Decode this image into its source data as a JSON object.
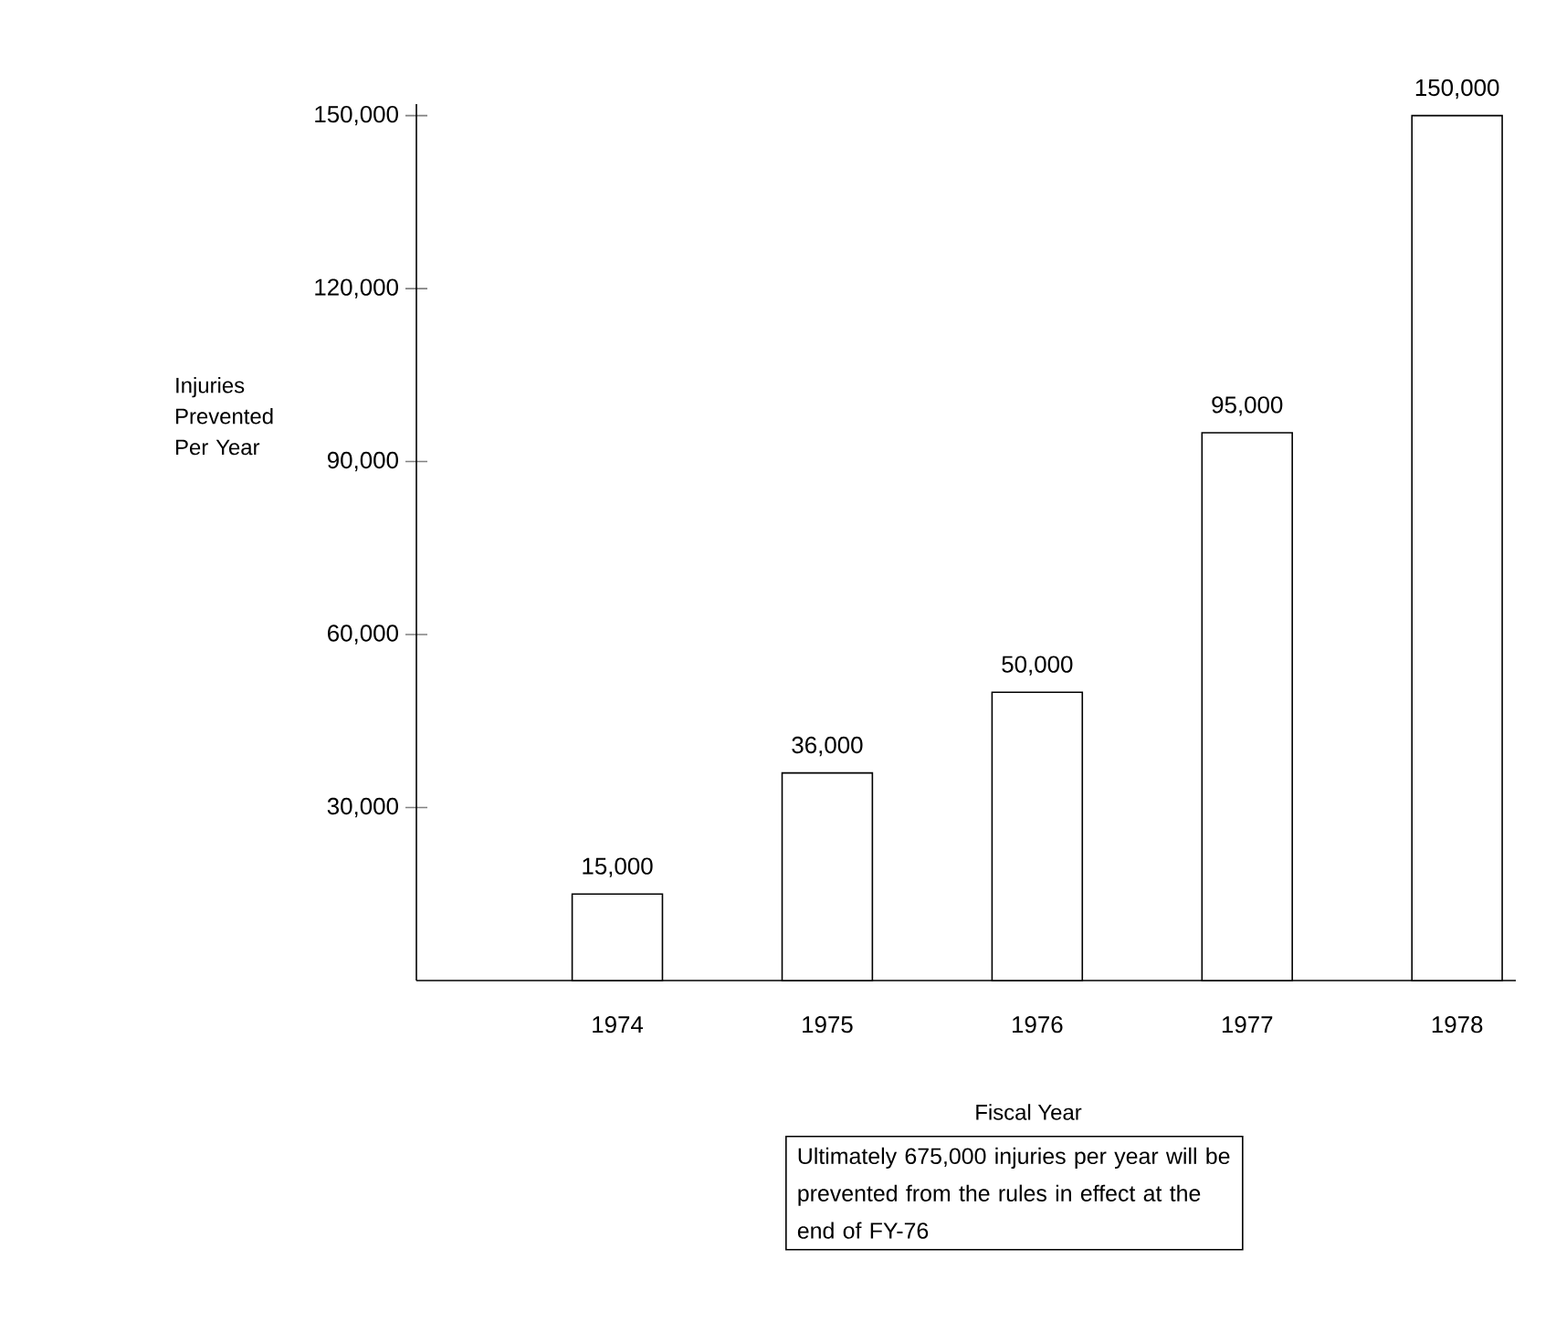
{
  "chart_data": {
    "type": "bar",
    "xlabel": "Fiscal Year",
    "ylabel": "Injuries Prevented Per Year",
    "categories": [
      "1974",
      "1975",
      "1976",
      "1977",
      "1978"
    ],
    "values": [
      15000,
      36000,
      50000,
      95000,
      150000
    ],
    "value_labels": [
      "15,000",
      "36,000",
      "50,000",
      "95,000",
      "150,000"
    ],
    "color": "#ffffff",
    "ylim": [
      0,
      152000
    ],
    "yticks": [
      {
        "value": 30000,
        "label": "30,000"
      },
      {
        "value": 60000,
        "label": "60,000"
      },
      {
        "value": 90000,
        "label": "90,000"
      },
      {
        "value": 120000,
        "label": "120,000"
      },
      {
        "value": 150000,
        "label": "150,000"
      }
    ],
    "annotations": [
      "Ultimately 675,000 injuries per year will be prevented from the rules in effect at the end of FY-76"
    ]
  }
}
